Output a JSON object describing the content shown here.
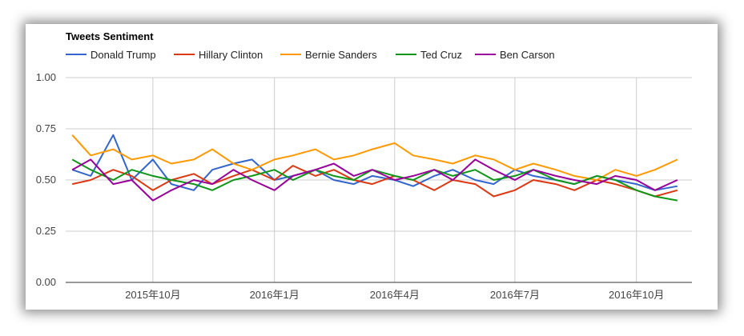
{
  "chart_data": {
    "type": "line",
    "title": "Tweets Sentiment",
    "xlabel": "",
    "ylabel": "",
    "ylim": [
      0,
      1
    ],
    "y_ticks": [
      "0.00",
      "0.25",
      "0.50",
      "0.75",
      "1.00"
    ],
    "y_tick_values": [
      0,
      0.25,
      0.5,
      0.75,
      1.0
    ],
    "x_ticks": [
      "2015年10月",
      "2016年1月",
      "2016年4月",
      "2016年7月",
      "2016年10月"
    ],
    "x_tick_dates": [
      "2015-10-01",
      "2016-01-01",
      "2016-04-01",
      "2016-07-01",
      "2016-10-01"
    ],
    "x_range": [
      "2015-07-27",
      "2016-11-12"
    ],
    "grid": true,
    "legend_position": "top",
    "series": [
      {
        "name": "Donald Trump",
        "color": "#3366cc",
        "x": [
          "2015-08-01",
          "2015-08-15",
          "2015-09-01",
          "2015-09-15",
          "2015-10-01",
          "2015-10-15",
          "2015-11-01",
          "2015-11-15",
          "2015-12-01",
          "2015-12-15",
          "2016-01-01",
          "2016-01-15",
          "2016-02-01",
          "2016-02-15",
          "2016-03-01",
          "2016-03-15",
          "2016-04-01",
          "2016-04-15",
          "2016-05-01",
          "2016-05-15",
          "2016-06-01",
          "2016-06-15",
          "2016-07-01",
          "2016-07-15",
          "2016-08-01",
          "2016-08-15",
          "2016-09-01",
          "2016-09-15",
          "2016-10-01",
          "2016-10-15",
          "2016-11-01"
        ],
        "values": [
          0.55,
          0.52,
          0.72,
          0.5,
          0.6,
          0.48,
          0.45,
          0.55,
          0.58,
          0.6,
          0.5,
          0.52,
          0.55,
          0.5,
          0.48,
          0.52,
          0.5,
          0.47,
          0.52,
          0.55,
          0.5,
          0.48,
          0.55,
          0.52,
          0.5,
          0.48,
          0.52,
          0.5,
          0.48,
          0.45,
          0.47
        ]
      },
      {
        "name": "Hillary Clinton",
        "color": "#dc3912",
        "x": [
          "2015-08-01",
          "2015-08-15",
          "2015-09-01",
          "2015-09-15",
          "2015-10-01",
          "2015-10-15",
          "2015-11-01",
          "2015-11-15",
          "2015-12-01",
          "2015-12-15",
          "2016-01-01",
          "2016-01-15",
          "2016-02-01",
          "2016-02-15",
          "2016-03-01",
          "2016-03-15",
          "2016-04-01",
          "2016-04-15",
          "2016-05-01",
          "2016-05-15",
          "2016-06-01",
          "2016-06-15",
          "2016-07-01",
          "2016-07-15",
          "2016-08-01",
          "2016-08-15",
          "2016-09-01",
          "2016-09-15",
          "2016-10-01",
          "2016-10-15",
          "2016-11-01"
        ],
        "values": [
          0.48,
          0.5,
          0.55,
          0.52,
          0.45,
          0.5,
          0.53,
          0.48,
          0.52,
          0.55,
          0.5,
          0.57,
          0.52,
          0.55,
          0.5,
          0.48,
          0.52,
          0.5,
          0.45,
          0.5,
          0.48,
          0.42,
          0.45,
          0.5,
          0.48,
          0.45,
          0.5,
          0.48,
          0.45,
          0.42,
          0.45
        ]
      },
      {
        "name": "Bernie Sanders",
        "color": "#ff9900",
        "x": [
          "2015-08-01",
          "2015-08-15",
          "2015-09-01",
          "2015-09-15",
          "2015-10-01",
          "2015-10-15",
          "2015-11-01",
          "2015-11-15",
          "2015-12-01",
          "2015-12-15",
          "2016-01-01",
          "2016-01-15",
          "2016-02-01",
          "2016-02-15",
          "2016-03-01",
          "2016-03-15",
          "2016-04-01",
          "2016-04-15",
          "2016-05-01",
          "2016-05-15",
          "2016-06-01",
          "2016-06-15",
          "2016-07-01",
          "2016-07-15",
          "2016-08-01",
          "2016-08-15",
          "2016-09-01",
          "2016-09-15",
          "2016-10-01",
          "2016-10-15",
          "2016-11-01"
        ],
        "values": [
          0.72,
          0.62,
          0.65,
          0.6,
          0.62,
          0.58,
          0.6,
          0.65,
          0.58,
          0.55,
          0.6,
          0.62,
          0.65,
          0.6,
          0.62,
          0.65,
          0.68,
          0.62,
          0.6,
          0.58,
          0.62,
          0.6,
          0.55,
          0.58,
          0.55,
          0.52,
          0.5,
          0.55,
          0.52,
          0.55,
          0.6
        ]
      },
      {
        "name": "Ted Cruz",
        "color": "#109618",
        "x": [
          "2015-08-01",
          "2015-08-15",
          "2015-09-01",
          "2015-09-15",
          "2015-10-01",
          "2015-10-15",
          "2015-11-01",
          "2015-11-15",
          "2015-12-01",
          "2015-12-15",
          "2016-01-01",
          "2016-01-15",
          "2016-02-01",
          "2016-02-15",
          "2016-03-01",
          "2016-03-15",
          "2016-04-01",
          "2016-04-15",
          "2016-05-01",
          "2016-05-15",
          "2016-06-01",
          "2016-06-15",
          "2016-07-01",
          "2016-07-15",
          "2016-08-01",
          "2016-08-15",
          "2016-09-01",
          "2016-09-15",
          "2016-10-01",
          "2016-10-15",
          "2016-11-01"
        ],
        "values": [
          0.6,
          0.55,
          0.5,
          0.55,
          0.52,
          0.5,
          0.48,
          0.45,
          0.5,
          0.52,
          0.55,
          0.5,
          0.55,
          0.52,
          0.5,
          0.55,
          0.52,
          0.5,
          0.55,
          0.52,
          0.55,
          0.5,
          0.52,
          0.55,
          0.5,
          0.48,
          0.52,
          0.5,
          0.45,
          0.42,
          0.4
        ]
      },
      {
        "name": "Ben Carson",
        "color": "#990099",
        "x": [
          "2015-08-01",
          "2015-08-15",
          "2015-09-01",
          "2015-09-15",
          "2015-10-01",
          "2015-10-15",
          "2015-11-01",
          "2015-11-15",
          "2015-12-01",
          "2015-12-15",
          "2016-01-01",
          "2016-01-15",
          "2016-02-01",
          "2016-02-15",
          "2016-03-01",
          "2016-03-15",
          "2016-04-01",
          "2016-04-15",
          "2016-05-01",
          "2016-05-15",
          "2016-06-01",
          "2016-06-15",
          "2016-07-01",
          "2016-07-15",
          "2016-08-01",
          "2016-08-15",
          "2016-09-01",
          "2016-09-15",
          "2016-10-01",
          "2016-10-15",
          "2016-11-01"
        ],
        "values": [
          0.55,
          0.6,
          0.48,
          0.5,
          0.4,
          0.45,
          0.5,
          0.48,
          0.55,
          0.5,
          0.45,
          0.52,
          0.55,
          0.58,
          0.52,
          0.55,
          0.5,
          0.52,
          0.55,
          0.5,
          0.6,
          0.55,
          0.5,
          0.55,
          0.52,
          0.5,
          0.48,
          0.52,
          0.5,
          0.45,
          0.5
        ]
      }
    ]
  }
}
